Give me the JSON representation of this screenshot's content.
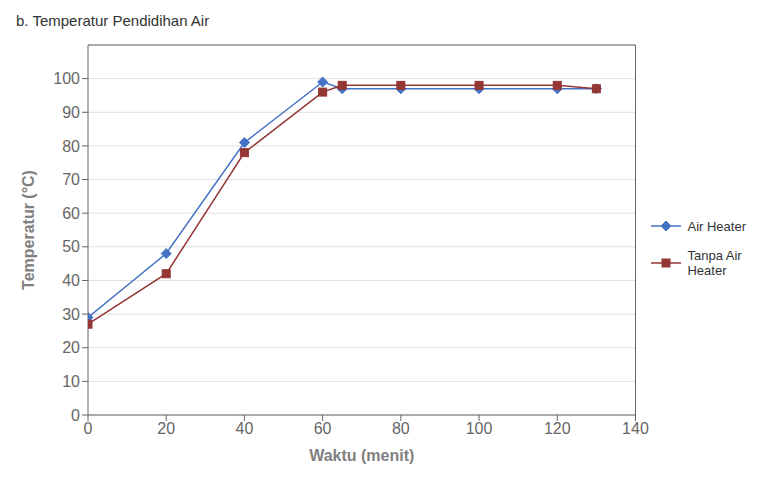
{
  "chart_data": {
    "type": "line",
    "title": "b. Temperatur Pendidihan Air",
    "x_label": "Waktu (menit)",
    "y_label": "Temperatur (°C)",
    "x": [
      0,
      20,
      40,
      60,
      65,
      80,
      100,
      120,
      130
    ],
    "series": [
      {
        "name": "Air Heater",
        "color": "#4472c4",
        "marker": "diamond",
        "values": [
          29,
          48,
          81,
          99,
          97,
          97,
          97,
          97,
          97
        ]
      },
      {
        "name": "Tanpa Air\nHeater",
        "color": "#943634",
        "marker": "square",
        "values": [
          27,
          42,
          78,
          96,
          98,
          98,
          98,
          98,
          97
        ]
      }
    ],
    "xlim": [
      0,
      140
    ],
    "ylim": [
      0,
      110
    ],
    "xticks": [
      0,
      20,
      40,
      60,
      80,
      100,
      120,
      140
    ],
    "yticks": [
      0,
      10,
      20,
      30,
      40,
      50,
      60,
      70,
      80,
      90,
      100
    ],
    "grid": "y",
    "legend": "right"
  }
}
